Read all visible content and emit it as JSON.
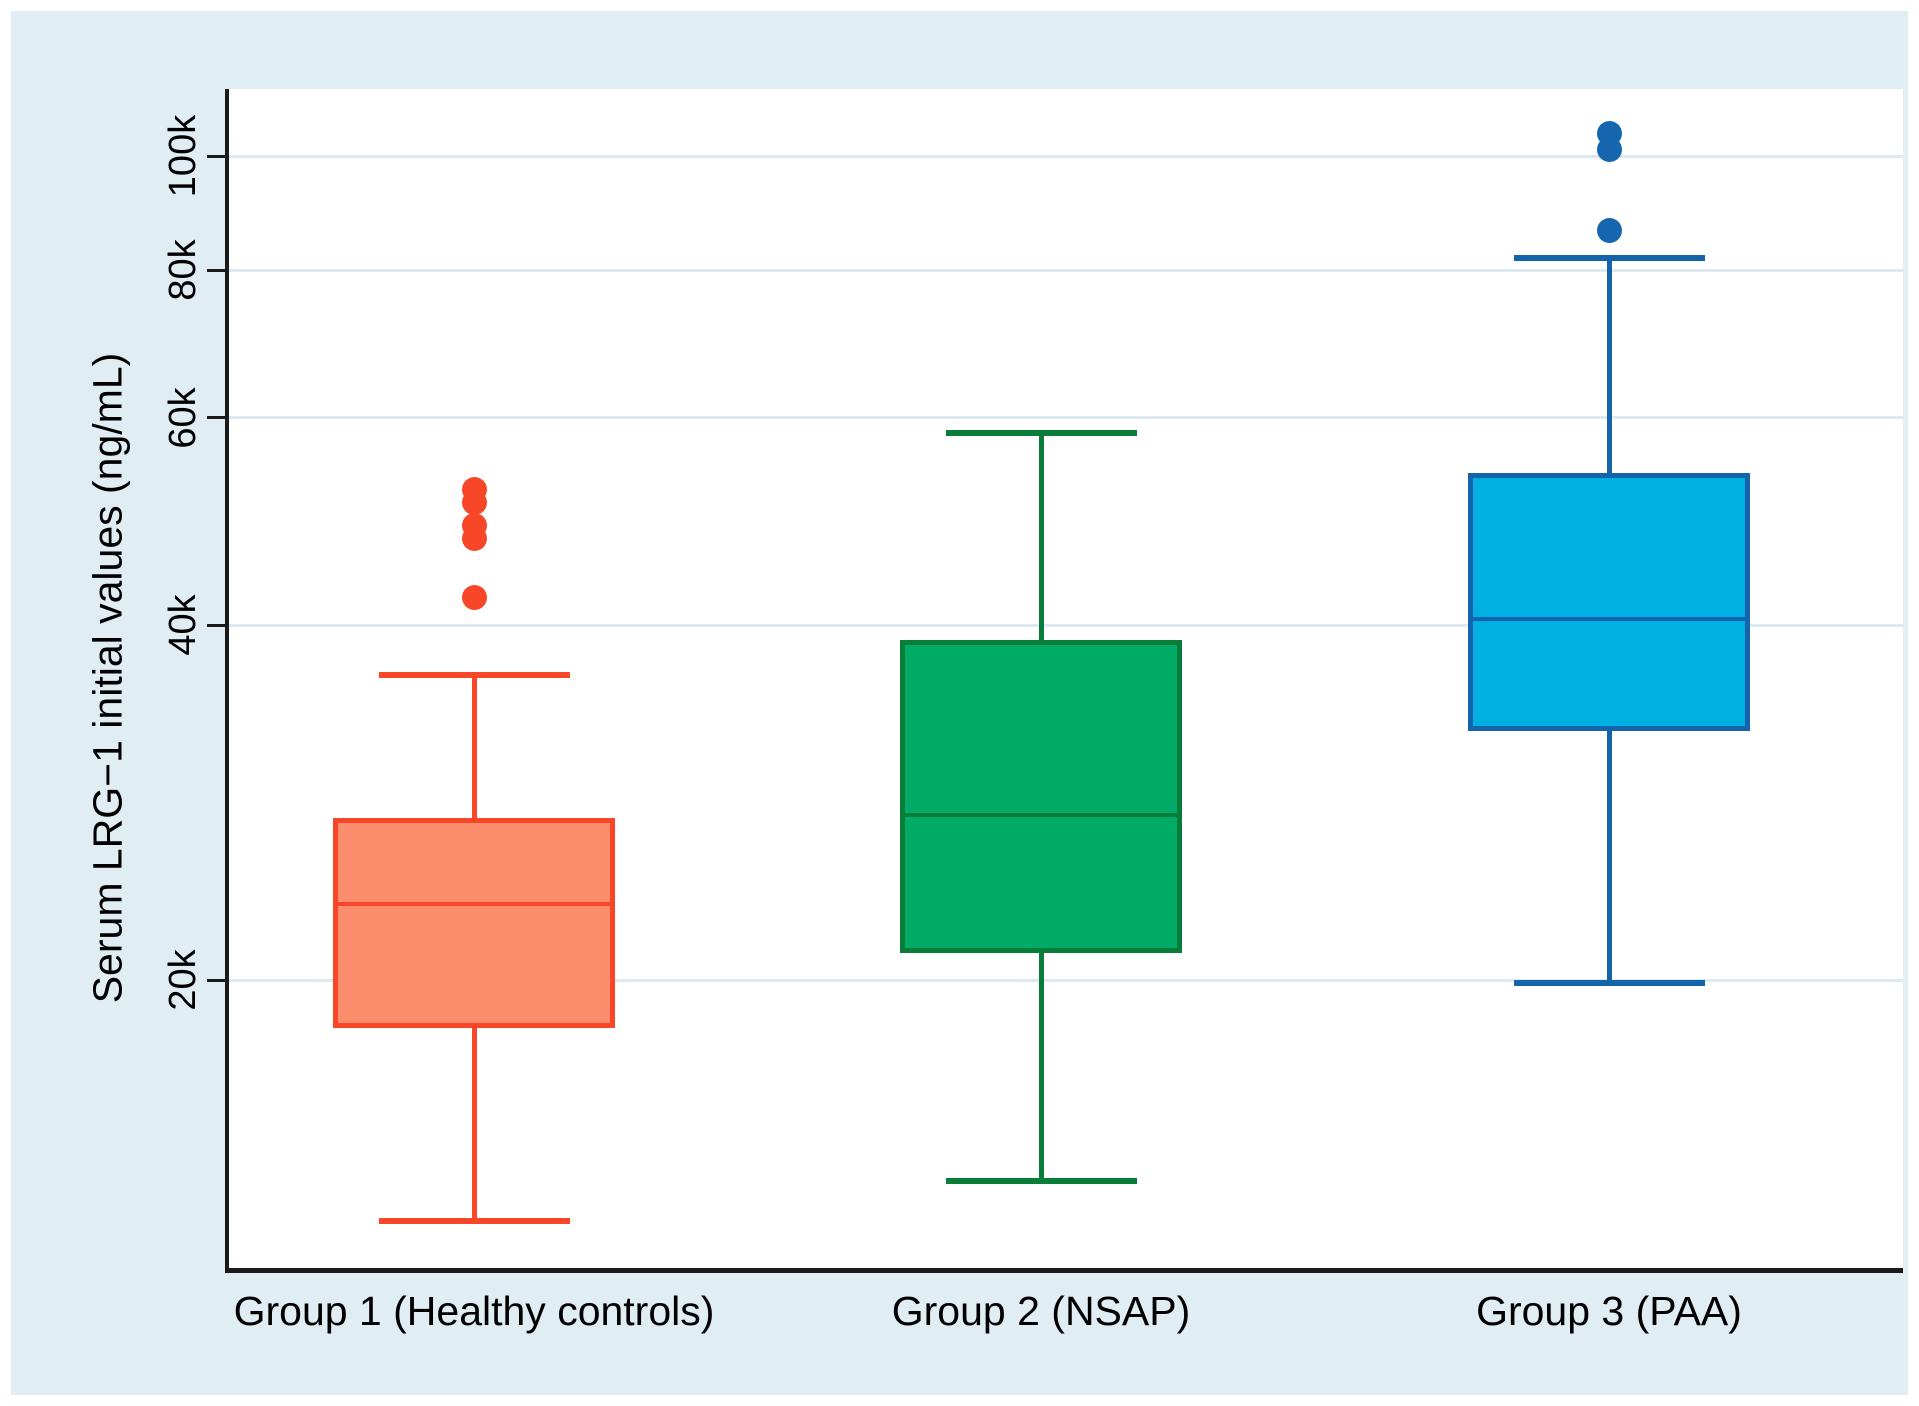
{
  "page": {
    "background": "#ffffff",
    "panel_background": "#e0edf3",
    "plot_background": "#ffffff",
    "gridline_color": "#dce9f1",
    "axis_color": "#1a1a1a",
    "text_color": "#000000"
  },
  "chart_data": {
    "type": "box",
    "title": "",
    "ylabel": "Serum LRG−1 initial values (ng/mL)",
    "xlabel": "",
    "yscale": "log",
    "ylim": [
      11400,
      114000
    ],
    "grid": true,
    "legend": "none",
    "yticks": [
      {
        "label": "20k",
        "value": 20000
      },
      {
        "label": "40k",
        "value": 40000
      },
      {
        "label": "60k",
        "value": 60000
      },
      {
        "label": "80k",
        "value": 80000
      },
      {
        "label": "100k",
        "value": 100000
      }
    ],
    "groups": [
      {
        "label": "Group 1 (Healthy controls)",
        "stroke": "#f74628",
        "fill": "#fb8d6c",
        "outlier_color": "#f74628",
        "whisker_low": 12500,
        "q1": 18300,
        "median": 23200,
        "q3": 27300,
        "whisker_high": 36300,
        "outliers": [
          42200,
          47400,
          48600,
          50800,
          52100
        ]
      },
      {
        "label": "Group 2 (NSAP)",
        "stroke": "#087d3a",
        "fill": "#03ab69",
        "outlier_color": "#087d3a",
        "whisker_low": 13500,
        "q1": 21200,
        "median": 27600,
        "q3": 38700,
        "whisker_high": 58200,
        "outliers": []
      },
      {
        "label": "Group 3 (PAA)",
        "stroke": "#1464ab",
        "fill": "#00b0e2",
        "outlier_color": "#1666af",
        "whisker_low": 19900,
        "q1": 32700,
        "median": 40500,
        "q3": 53600,
        "whisker_high": 82000,
        "outliers": [
          86400,
          101200,
          104600
        ]
      }
    ]
  }
}
